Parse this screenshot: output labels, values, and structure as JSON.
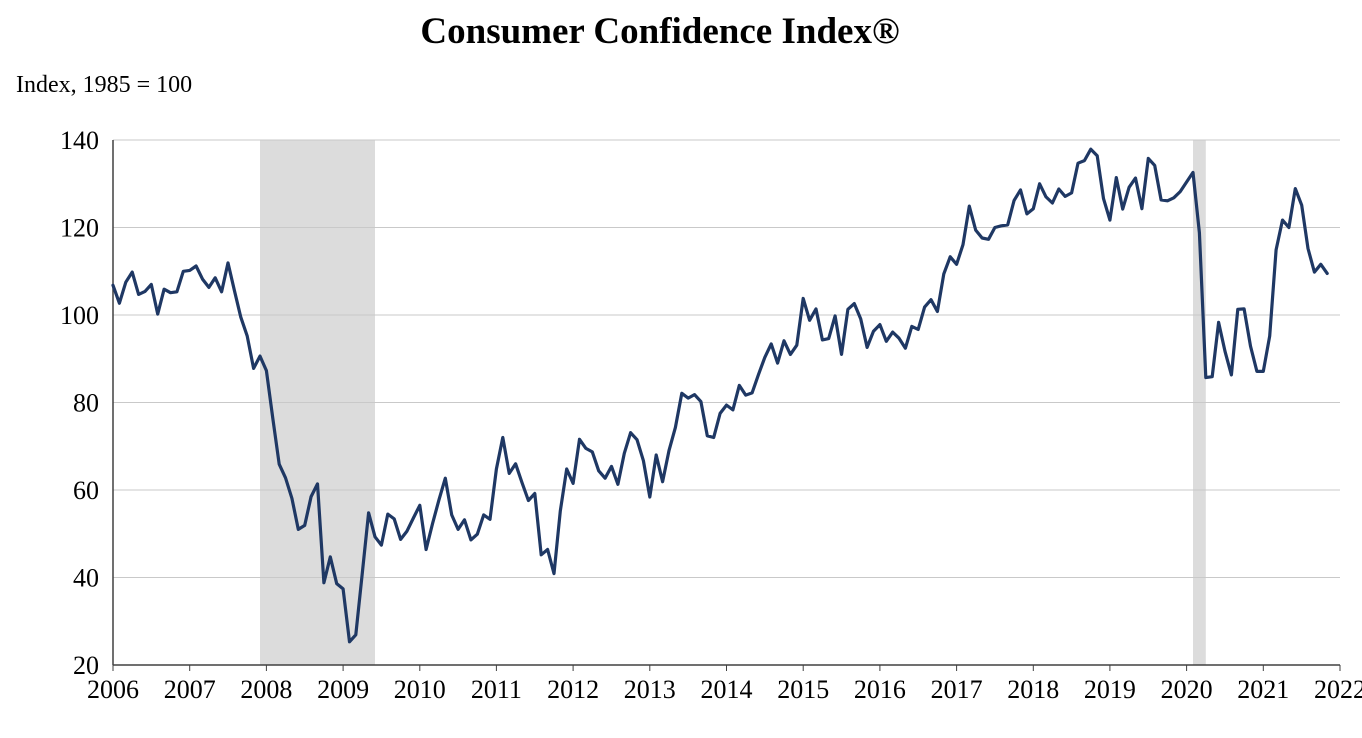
{
  "chart_data": {
    "type": "line",
    "title": "Consumer Confidence Index®",
    "axis_note": "Index, 1985 = 100",
    "xlabel": "",
    "ylabel": "Index, 1985 = 100",
    "ylim": [
      20,
      140
    ],
    "y_ticks": [
      20,
      40,
      60,
      80,
      100,
      120,
      140
    ],
    "x_range": [
      2006,
      2022
    ],
    "x_tick_labels": [
      "2006",
      "2007",
      "2008",
      "2009",
      "2010",
      "2011",
      "2012",
      "2013",
      "2014",
      "2015",
      "2016",
      "2017",
      "2018",
      "2019",
      "2020",
      "2021",
      "2022"
    ],
    "grid": "horizontal",
    "legend": "none",
    "colors": {
      "line": "#1f3864",
      "recession_band": "#dcdcdc",
      "gridline": "#c9c9c9",
      "axis": "#404040",
      "text": "#000000",
      "background": "#ffffff"
    },
    "recession_bands": [
      {
        "start": "2007-12",
        "end": "2009-06"
      },
      {
        "start": "2020-02",
        "end": "2020-04"
      }
    ],
    "series": [
      {
        "name": "Consumer Confidence Index",
        "color": "#1f3864",
        "start": "2006-01",
        "frequency": "monthly",
        "values": [
          106.8,
          102.7,
          107.5,
          109.8,
          104.7,
          105.4,
          107.0,
          100.2,
          105.9,
          105.1,
          105.3,
          110.0,
          110.2,
          111.2,
          108.2,
          106.3,
          108.5,
          105.3,
          111.9,
          105.6,
          99.5,
          95.2,
          87.8,
          90.6,
          87.3,
          76.4,
          65.9,
          62.8,
          58.1,
          51.0,
          51.9,
          58.5,
          61.4,
          38.8,
          44.7,
          38.6,
          37.4,
          25.3,
          26.9,
          40.8,
          54.8,
          49.3,
          47.4,
          54.5,
          53.4,
          48.7,
          50.6,
          53.6,
          56.5,
          46.4,
          52.3,
          57.7,
          62.7,
          54.3,
          51.0,
          53.2,
          48.6,
          49.9,
          54.3,
          53.3,
          64.8,
          72.0,
          63.8,
          66.0,
          61.7,
          57.6,
          59.2,
          45.2,
          46.4,
          40.9,
          55.2,
          64.8,
          61.5,
          71.6,
          69.5,
          68.7,
          64.4,
          62.7,
          65.4,
          61.3,
          68.4,
          73.1,
          71.5,
          66.7,
          58.4,
          68.0,
          61.9,
          69.0,
          74.3,
          82.1,
          81.0,
          81.8,
          80.2,
          72.4,
          72.0,
          77.5,
          79.4,
          78.3,
          83.9,
          81.7,
          82.2,
          86.4,
          90.3,
          93.4,
          89.0,
          94.1,
          91.0,
          93.1,
          103.8,
          98.8,
          101.4,
          94.3,
          94.6,
          99.8,
          91.0,
          101.3,
          102.6,
          99.1,
          92.6,
          96.3,
          97.8,
          94.0,
          96.1,
          94.7,
          92.4,
          97.4,
          96.7,
          101.8,
          103.5,
          100.8,
          109.4,
          113.3,
          111.6,
          116.1,
          124.9,
          119.4,
          117.6,
          117.3,
          120.0,
          120.4,
          120.6,
          126.2,
          128.6,
          123.1,
          124.3,
          130.0,
          127.0,
          125.6,
          128.8,
          127.1,
          127.9,
          134.7,
          135.3,
          137.9,
          136.4,
          126.6,
          121.7,
          131.4,
          124.2,
          129.2,
          131.3,
          124.3,
          135.8,
          134.2,
          126.3,
          126.1,
          126.8,
          128.2,
          130.4,
          132.6,
          118.8,
          85.7,
          85.9,
          98.3,
          91.7,
          86.3,
          101.3,
          101.4,
          92.9,
          87.1,
          87.1,
          95.2,
          114.9,
          121.7,
          120.0,
          128.9,
          125.1,
          115.2,
          109.8,
          111.6,
          109.5
        ]
      }
    ]
  }
}
